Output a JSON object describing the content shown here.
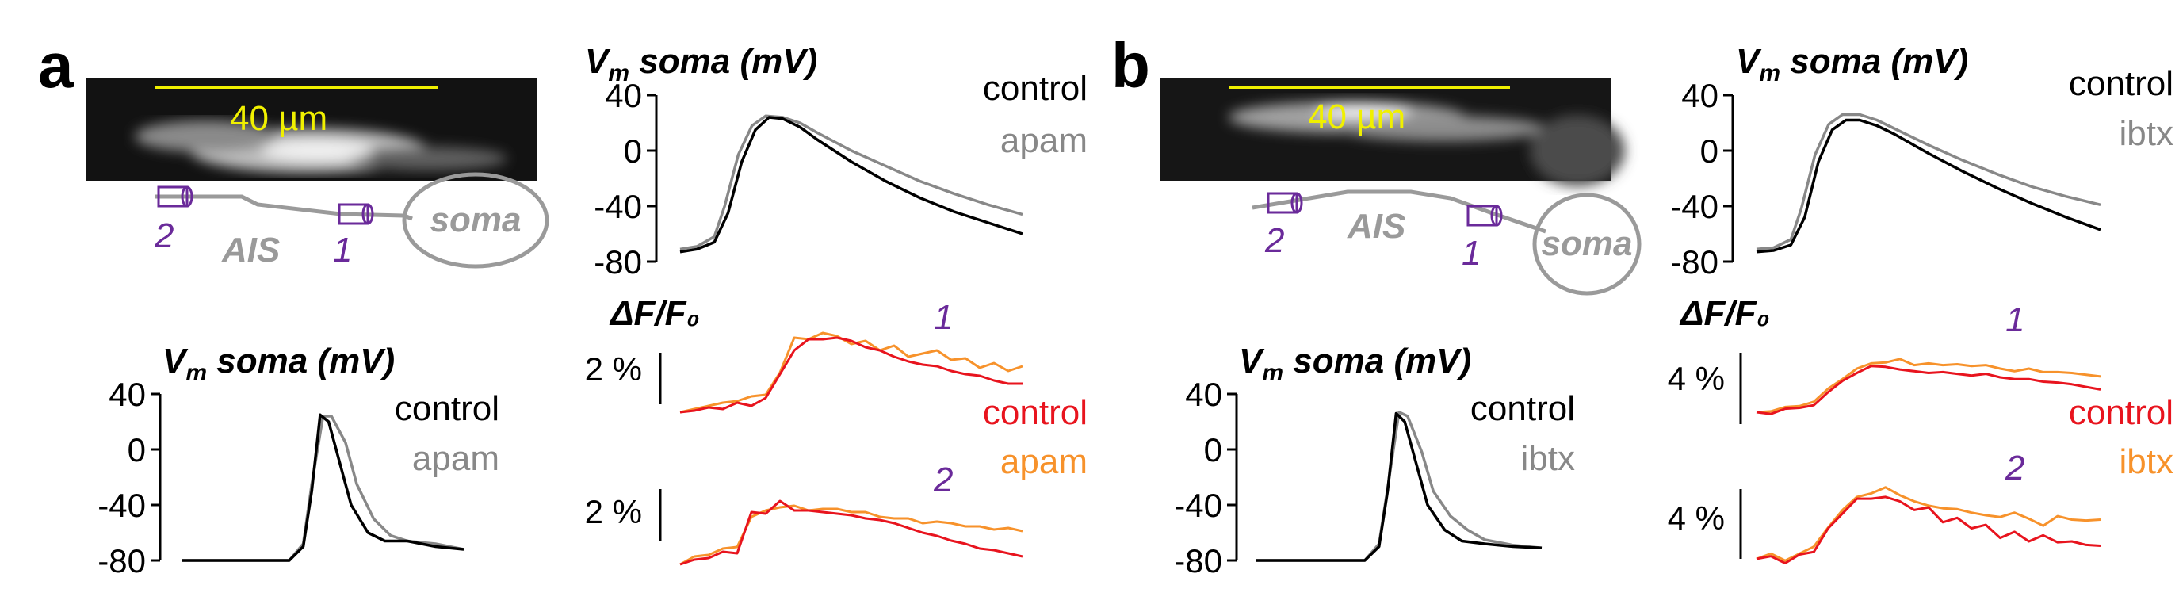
{
  "panel_labels": [
    "a",
    "b"
  ],
  "colors": {
    "control_black": "#000000",
    "drug_gray": "#888888",
    "control_red": "#e8141e",
    "drug_orange": "#f7922b",
    "scale_yellow": "#f0f000",
    "marker_purple": "#6a2a9a",
    "axon_gray": "#9a9a9a"
  },
  "images": {
    "a": {
      "scale_label": "40 µm",
      "axon_labels": [
        "AIS",
        "soma"
      ],
      "site_labels": [
        "2",
        "1"
      ]
    },
    "b": {
      "scale_label": "40 µm",
      "axon_labels": [
        "AIS",
        "soma"
      ],
      "site_labels": [
        "2",
        "1"
      ]
    }
  },
  "chart_data": [
    {
      "id": "a-vm-zoom",
      "type": "line",
      "title": "V_m soma (mV)",
      "title_parts": [
        "V",
        "m",
        " soma (mV)"
      ],
      "ylim": [
        -80,
        40
      ],
      "yticks": [
        "40",
        "0",
        "-40",
        "-80"
      ],
      "legend": [
        "control",
        "apam"
      ],
      "series": [
        {
          "name": "control",
          "color": "#000000",
          "x": [
            0,
            0.05,
            0.1,
            0.14,
            0.18,
            0.22,
            0.26,
            0.3,
            0.35,
            0.4,
            0.5,
            0.6,
            0.7,
            0.8,
            0.9,
            1.0
          ],
          "y": [
            -73,
            -71,
            -66,
            -45,
            -8,
            15,
            24,
            23,
            17,
            8,
            -8,
            -22,
            -34,
            -44,
            -52,
            -60
          ]
        },
        {
          "name": "apam",
          "color": "#888888",
          "x": [
            0,
            0.05,
            0.1,
            0.13,
            0.17,
            0.21,
            0.25,
            0.3,
            0.35,
            0.4,
            0.5,
            0.6,
            0.7,
            0.8,
            0.9,
            1.0
          ],
          "y": [
            -71,
            -69,
            -62,
            -40,
            -3,
            18,
            25,
            24,
            20,
            13,
            0,
            -11,
            -22,
            -31,
            -39,
            -46
          ]
        }
      ]
    },
    {
      "id": "a-dff-1",
      "type": "line",
      "title": "ΔF/F₀",
      "scalebar_label": "2 %",
      "site_label": "1",
      "legend": [
        "control",
        "apam"
      ],
      "series": [
        {
          "name": "control",
          "color": "#e8141e",
          "values": [
            0,
            0.1,
            0.3,
            0.2,
            0.6,
            0.4,
            0.9,
            2.4,
            3.9,
            4.6,
            4.6,
            4.7,
            4.5,
            4.1,
            3.9,
            3.5,
            3.2,
            3.0,
            2.9,
            2.6,
            2.4,
            2.3,
            2.0,
            1.8,
            1.8
          ]
        },
        {
          "name": "apam",
          "color": "#f7922b",
          "values": [
            0,
            0.2,
            0.4,
            0.6,
            0.7,
            1.0,
            1.1,
            2.5,
            4.7,
            4.6,
            5.0,
            4.8,
            4.3,
            4.5,
            3.9,
            4.2,
            3.5,
            3.7,
            3.9,
            3.3,
            3.4,
            2.8,
            3.1,
            2.6,
            2.9
          ]
        }
      ]
    },
    {
      "id": "a-dff-2",
      "type": "line",
      "scalebar_label": "2 %",
      "site_label": "2",
      "series": [
        {
          "name": "control",
          "color": "#e8141e",
          "values": [
            0,
            0.3,
            0.4,
            0.8,
            0.7,
            3.3,
            3.2,
            4.0,
            3.4,
            3.4,
            3.3,
            3.2,
            3.1,
            2.9,
            2.8,
            2.6,
            2.3,
            2.0,
            1.8,
            1.5,
            1.3,
            1.0,
            0.9,
            0.7,
            0.5
          ]
        },
        {
          "name": "apam",
          "color": "#f7922b",
          "values": [
            0,
            0.5,
            0.6,
            1.0,
            1.1,
            3.0,
            3.4,
            3.6,
            3.7,
            3.4,
            3.5,
            3.5,
            3.3,
            3.3,
            3.0,
            2.9,
            2.9,
            2.6,
            2.7,
            2.6,
            2.4,
            2.4,
            2.2,
            2.3,
            2.1
          ]
        }
      ]
    },
    {
      "id": "a-vm-long",
      "type": "line",
      "title": "V_m soma (mV)",
      "title_parts": [
        "V",
        "m",
        " soma (mV)"
      ],
      "ylim": [
        -80,
        40
      ],
      "yticks": [
        "40",
        "0",
        "-40",
        "-80"
      ],
      "legend": [
        "control",
        "apam"
      ],
      "series": [
        {
          "name": "control",
          "color": "#000000",
          "x": [
            0,
            0.3,
            0.38,
            0.43,
            0.46,
            0.49,
            0.52,
            0.56,
            0.6,
            0.66,
            0.72,
            0.8,
            0.9,
            1.0
          ],
          "y": [
            -80,
            -80,
            -80,
            -70,
            -30,
            25,
            20,
            -10,
            -40,
            -60,
            -66,
            -66,
            -70,
            -72
          ]
        },
        {
          "name": "apam",
          "color": "#888888",
          "x": [
            0,
            0.3,
            0.38,
            0.43,
            0.46,
            0.5,
            0.53,
            0.58,
            0.62,
            0.68,
            0.74,
            0.8,
            0.9,
            1.0
          ],
          "y": [
            -80,
            -80,
            -80,
            -68,
            -25,
            24,
            24,
            5,
            -25,
            -50,
            -62,
            -66,
            -68,
            -72
          ]
        }
      ]
    },
    {
      "id": "b-vm-zoom",
      "type": "line",
      "title": "V_m soma (mV)",
      "title_parts": [
        "V",
        "m",
        " soma (mV)"
      ],
      "ylim": [
        -80,
        40
      ],
      "yticks": [
        "40",
        "0",
        "-40",
        "-80"
      ],
      "legend": [
        "control",
        "ibtx"
      ],
      "series": [
        {
          "name": "control",
          "color": "#000000",
          "x": [
            0,
            0.05,
            0.1,
            0.14,
            0.18,
            0.22,
            0.26,
            0.3,
            0.35,
            0.4,
            0.5,
            0.6,
            0.7,
            0.8,
            0.9,
            1.0
          ],
          "y": [
            -73,
            -72,
            -68,
            -48,
            -8,
            15,
            22,
            22,
            18,
            12,
            -2,
            -15,
            -27,
            -38,
            -48,
            -57
          ]
        },
        {
          "name": "ibtx",
          "color": "#888888",
          "x": [
            0,
            0.05,
            0.1,
            0.13,
            0.17,
            0.21,
            0.25,
            0.3,
            0.35,
            0.4,
            0.5,
            0.6,
            0.7,
            0.8,
            0.9,
            1.0
          ],
          "y": [
            -71,
            -70,
            -64,
            -42,
            -3,
            19,
            26,
            26,
            22,
            16,
            4,
            -7,
            -17,
            -26,
            -33,
            -39
          ]
        }
      ]
    },
    {
      "id": "b-dff-1",
      "type": "line",
      "title": "ΔF/F₀",
      "scalebar_label": "4 %",
      "site_label": "1",
      "legend": [
        "control",
        "ibtx"
      ],
      "series": [
        {
          "name": "control",
          "color": "#e8141e",
          "values": [
            0,
            -0.2,
            0.4,
            0.5,
            0.8,
            2.3,
            3.6,
            4.5,
            5.3,
            5.2,
            4.9,
            4.7,
            4.5,
            4.6,
            4.4,
            4.2,
            4.4,
            4.0,
            3.8,
            3.8,
            3.5,
            3.4,
            3.2,
            2.9,
            2.6
          ]
        },
        {
          "name": "ibtx",
          "color": "#f7922b",
          "values": [
            0,
            0.1,
            0.6,
            0.7,
            1.2,
            2.7,
            3.8,
            5.0,
            5.6,
            5.7,
            6.1,
            5.4,
            5.6,
            5.4,
            5.5,
            5.3,
            5.4,
            5.0,
            4.7,
            5.0,
            4.6,
            4.6,
            4.5,
            4.3,
            4.1
          ]
        }
      ]
    },
    {
      "id": "b-dff-2",
      "type": "line",
      "scalebar_label": "4 %",
      "site_label": "2",
      "series": [
        {
          "name": "control",
          "color": "#e8141e",
          "values": [
            0,
            0.3,
            -0.5,
            0.5,
            0.8,
            3.5,
            5.2,
            6.9,
            6.9,
            7.1,
            6.6,
            5.6,
            5.9,
            4.2,
            4.7,
            3.5,
            3.9,
            2.4,
            3.1,
            2.0,
            2.7,
            1.9,
            2.0,
            1.6,
            1.5
          ]
        },
        {
          "name": "ibtx",
          "color": "#f7922b",
          "values": [
            0,
            0.6,
            -0.2,
            0.6,
            1.4,
            3.6,
            5.6,
            7.1,
            7.5,
            8.2,
            7.3,
            6.6,
            6.1,
            5.8,
            5.7,
            5.3,
            5.0,
            4.8,
            5.3,
            4.6,
            3.8,
            4.9,
            4.5,
            4.4,
            4.5
          ]
        }
      ]
    },
    {
      "id": "b-vm-long",
      "type": "line",
      "title": "V_m soma (mV)",
      "title_parts": [
        "V",
        "m",
        " soma (mV)"
      ],
      "ylim": [
        -80,
        40
      ],
      "yticks": [
        "40",
        "0",
        "-40",
        "-80"
      ],
      "legend": [
        "control",
        "ibtx"
      ],
      "series": [
        {
          "name": "control",
          "color": "#000000",
          "x": [
            0,
            0.3,
            0.38,
            0.43,
            0.46,
            0.49,
            0.52,
            0.56,
            0.6,
            0.66,
            0.72,
            0.8,
            0.9,
            1.0
          ],
          "y": [
            -80,
            -80,
            -80,
            -70,
            -30,
            26,
            20,
            -10,
            -40,
            -58,
            -66,
            -68,
            -70,
            -71
          ]
        },
        {
          "name": "ibtx",
          "color": "#888888",
          "x": [
            0,
            0.3,
            0.38,
            0.43,
            0.46,
            0.5,
            0.53,
            0.58,
            0.62,
            0.68,
            0.74,
            0.8,
            0.9,
            1.0
          ],
          "y": [
            -80,
            -80,
            -80,
            -68,
            -28,
            27,
            24,
            -2,
            -30,
            -48,
            -58,
            -65,
            -69,
            -71
          ]
        }
      ]
    }
  ]
}
